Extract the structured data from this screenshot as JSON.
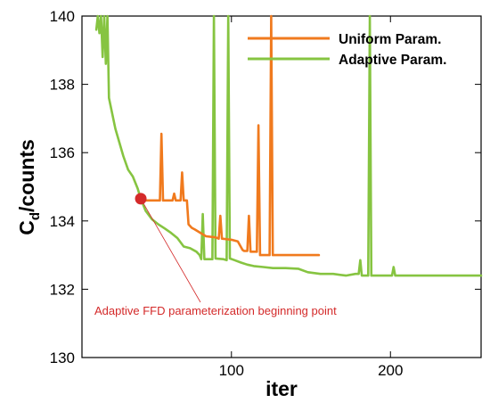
{
  "chart_data": {
    "type": "line",
    "title": "",
    "xlabel": "iter",
    "ylabel": "C",
    "ylabel_sub": "d",
    "ylabel_suffix": "/counts",
    "xlim": [
      6,
      257
    ],
    "ylim": [
      130,
      140
    ],
    "xticks": [
      100,
      200
    ],
    "yticks": [
      130,
      132,
      134,
      136,
      138,
      140
    ],
    "grid": false,
    "legend_position": "top-right",
    "series": [
      {
        "name": "Uniform Param.",
        "color": "#f07a1e",
        "points": [
          [
            43,
            134.65
          ],
          [
            44,
            134.6
          ],
          [
            54,
            134.6
          ],
          [
            55,
            134.6
          ],
          [
            56,
            136.55
          ],
          [
            57,
            134.6
          ],
          [
            63,
            134.6
          ],
          [
            64,
            134.8
          ],
          [
            65,
            134.6
          ],
          [
            68,
            134.6
          ],
          [
            69,
            135.42
          ],
          [
            70,
            134.6
          ],
          [
            72,
            134.6
          ],
          [
            73,
            133.9
          ],
          [
            75,
            133.8
          ],
          [
            77,
            133.75
          ],
          [
            84,
            133.55
          ],
          [
            90,
            133.52
          ],
          [
            92,
            133.48
          ],
          [
            93,
            134.15
          ],
          [
            94,
            133.48
          ],
          [
            100,
            133.45
          ],
          [
            104,
            133.4
          ],
          [
            107,
            133.15
          ],
          [
            108,
            133.12
          ],
          [
            110,
            133.12
          ],
          [
            111,
            134.15
          ],
          [
            112,
            133.1
          ],
          [
            115,
            133.1
          ],
          [
            116,
            133.1
          ],
          [
            117,
            136.8
          ],
          [
            118,
            133.0
          ],
          [
            124,
            133.0
          ],
          [
            125,
            140.0
          ],
          [
            126,
            133.0
          ],
          [
            155,
            133.0
          ]
        ]
      },
      {
        "name": "Adaptive Param.",
        "color": "#86c441",
        "points": [
          [
            15,
            139.6
          ],
          [
            16,
            140.0
          ],
          [
            17,
            139.5
          ],
          [
            18,
            140.0
          ],
          [
            19,
            138.8
          ],
          [
            20,
            140.0
          ],
          [
            21,
            138.6
          ],
          [
            22,
            140.0
          ],
          [
            23,
            137.6
          ],
          [
            27,
            136.7
          ],
          [
            32,
            135.9
          ],
          [
            35,
            135.5
          ],
          [
            38,
            135.3
          ],
          [
            41,
            134.95
          ],
          [
            43,
            134.65
          ],
          [
            46,
            134.3
          ],
          [
            50,
            134.05
          ],
          [
            54,
            133.9
          ],
          [
            58,
            133.78
          ],
          [
            62,
            133.65
          ],
          [
            66,
            133.5
          ],
          [
            70,
            133.25
          ],
          [
            74,
            133.2
          ],
          [
            78,
            133.1
          ],
          [
            80,
            133.0
          ],
          [
            81,
            132.88
          ],
          [
            82,
            134.2
          ],
          [
            83,
            132.88
          ],
          [
            88,
            132.88
          ],
          [
            89,
            140.0
          ],
          [
            90,
            132.9
          ],
          [
            95,
            132.88
          ],
          [
            97,
            132.85
          ],
          [
            98,
            140.0
          ],
          [
            99,
            132.9
          ],
          [
            102,
            132.85
          ],
          [
            106,
            132.78
          ],
          [
            110,
            132.72
          ],
          [
            114,
            132.68
          ],
          [
            120,
            132.65
          ],
          [
            126,
            132.62
          ],
          [
            134,
            132.62
          ],
          [
            142,
            132.6
          ],
          [
            148,
            132.5
          ],
          [
            156,
            132.45
          ],
          [
            164,
            132.45
          ],
          [
            172,
            132.4
          ],
          [
            178,
            132.45
          ],
          [
            180,
            132.45
          ],
          [
            181,
            132.85
          ],
          [
            182,
            132.4
          ],
          [
            186,
            132.4
          ],
          [
            187,
            140.0
          ],
          [
            188,
            132.4
          ],
          [
            201,
            132.4
          ],
          [
            202,
            132.65
          ],
          [
            203,
            132.4
          ],
          [
            257,
            132.4
          ]
        ]
      }
    ],
    "annotation": {
      "text": "Adaptive FFD parameterization beginning point",
      "marker_x": 43,
      "marker_y": 134.65,
      "color": "#d42a2a"
    }
  }
}
